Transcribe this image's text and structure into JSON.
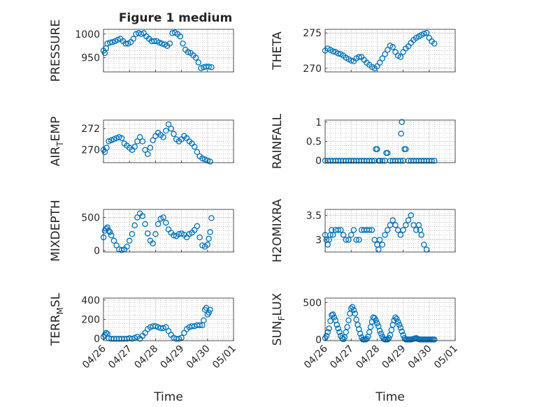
{
  "figure": {
    "title": "Figure 1 medium",
    "colors": {
      "marker": "#0072BD",
      "axis": "#262626",
      "grid": "#b3b3b3",
      "background": "#ffffff"
    }
  },
  "chart_data": [
    {
      "type": "scatter",
      "ylabel": "PRESSURE",
      "xlabel": "",
      "xlim": [
        "04/26",
        "05/01"
      ],
      "ylim": [
        920,
        1010
      ],
      "yticks": [
        950,
        1000
      ],
      "show_xticklabels": false,
      "x": [
        0,
        0.05,
        0.1,
        0.15,
        0.25,
        0.35,
        0.45,
        0.55,
        0.65,
        0.75,
        0.85,
        0.95,
        1.05,
        1.15,
        1.25,
        1.35,
        1.45,
        1.55,
        1.65,
        1.75,
        1.85,
        1.95,
        2.05,
        2.15,
        2.25,
        2.35,
        2.45,
        2.55,
        2.65,
        2.75,
        2.85,
        2.95,
        3.05,
        3.15,
        3.25,
        3.35,
        3.45,
        3.55,
        3.65,
        3.75,
        3.85,
        3.95,
        4.05,
        4.15
      ],
      "y": [
        965,
        960,
        970,
        980,
        982,
        983,
        985,
        988,
        990,
        985,
        980,
        980,
        983,
        990,
        1000,
        1002,
        1000,
        1002,
        995,
        990,
        985,
        985,
        985,
        982,
        980,
        978,
        975,
        980,
        1002,
        1003,
        1000,
        995,
        980,
        967,
        962,
        960,
        955,
        950,
        940,
        928,
        930,
        931,
        931,
        930
      ]
    },
    {
      "type": "scatter",
      "ylabel": "THETA",
      "xlabel": "",
      "xlim": [
        "04/26",
        "05/01"
      ],
      "ylim": [
        269.5,
        275.5
      ],
      "yticks": [
        270,
        275
      ],
      "show_xticklabels": false,
      "x": [
        0,
        0.1,
        0.2,
        0.3,
        0.4,
        0.5,
        0.6,
        0.7,
        0.8,
        0.9,
        1.0,
        1.1,
        1.2,
        1.3,
        1.4,
        1.5,
        1.6,
        1.7,
        1.8,
        1.9,
        2.0,
        2.1,
        2.2,
        2.3,
        2.4,
        2.5,
        2.6,
        2.7,
        2.8,
        2.9,
        3.0,
        3.1,
        3.2,
        3.3,
        3.4,
        3.5,
        3.6,
        3.7,
        3.8,
        3.9,
        4.0,
        4.1,
        4.2
      ],
      "y": [
        272.5,
        272.8,
        272.6,
        272.4,
        272.3,
        272.1,
        272.0,
        271.8,
        271.5,
        271.3,
        271.1,
        271.0,
        271.4,
        271.6,
        271.6,
        271.2,
        270.8,
        270.5,
        270.2,
        270.0,
        270.3,
        270.8,
        271.4,
        272.0,
        272.6,
        273.2,
        273.0,
        272.3,
        271.8,
        271.6,
        272.3,
        272.8,
        273.1,
        273.6,
        274.0,
        274.3,
        274.5,
        274.7,
        274.9,
        275.0,
        274.3,
        273.8,
        273.5
      ]
    },
    {
      "type": "scatter",
      "ylabel": "AIR_TEMP",
      "ylabel_main": "AIR",
      "ylabel_sub": "T",
      "ylabel_tail": "EMP",
      "xlabel": "",
      "xlim": [
        "04/26",
        "05/01"
      ],
      "ylim": [
        268.8,
        272.8
      ],
      "yticks": [
        270,
        272
      ],
      "show_xticklabels": false,
      "x": [
        0,
        0.05,
        0.12,
        0.2,
        0.3,
        0.4,
        0.5,
        0.6,
        0.7,
        0.8,
        0.9,
        1.0,
        1.1,
        1.2,
        1.3,
        1.4,
        1.5,
        1.6,
        1.7,
        1.8,
        1.9,
        2.0,
        2.1,
        2.2,
        2.3,
        2.4,
        2.5,
        2.6,
        2.7,
        2.8,
        2.9,
        3.0,
        3.1,
        3.2,
        3.3,
        3.4,
        3.5,
        3.6,
        3.7,
        3.8,
        3.9,
        4.0,
        4.1
      ],
      "y": [
        270,
        269.8,
        270.2,
        270.8,
        270.9,
        271,
        271.1,
        271.2,
        271.1,
        270.6,
        270.4,
        270.2,
        270.0,
        270.3,
        270.8,
        271.2,
        270.8,
        270.0,
        269.6,
        270.2,
        270.9,
        271.3,
        271.6,
        271.4,
        271.2,
        271.8,
        272.4,
        272.0,
        271.5,
        271.0,
        270.8,
        271.0,
        271.3,
        271.1,
        270.8,
        270.6,
        270.3,
        269.8,
        269.4,
        269.2,
        269.1,
        269.0,
        268.9
      ]
    },
    {
      "type": "scatter",
      "ylabel": "RAINFALL",
      "xlabel": "",
      "xlim": [
        "04/26",
        "05/01"
      ],
      "ylim": [
        -0.05,
        1.05
      ],
      "yticks": [
        0,
        0.5,
        1
      ],
      "ytick_labels": [
        "0",
        "0.5",
        "1"
      ],
      "show_xticklabels": false,
      "x": [
        0,
        0.1,
        0.2,
        0.3,
        0.4,
        0.5,
        0.6,
        0.7,
        0.8,
        0.9,
        1.0,
        1.1,
        1.2,
        1.3,
        1.4,
        1.5,
        1.6,
        1.7,
        1.8,
        1.9,
        1.95,
        2.0,
        2.05,
        2.1,
        2.2,
        2.3,
        2.35,
        2.4,
        2.5,
        2.6,
        2.7,
        2.8,
        2.9,
        2.92,
        2.95,
        3.0,
        3.05,
        3.1,
        3.2,
        3.3,
        3.4,
        3.5,
        3.6,
        3.7,
        3.8,
        3.9,
        4.0,
        4.1,
        4.2
      ],
      "y": [
        0,
        0,
        0,
        0,
        0,
        0,
        0,
        0,
        0,
        0,
        0,
        0,
        0,
        0,
        0,
        0,
        0,
        0,
        0,
        0,
        0.3,
        0.3,
        0,
        0,
        0,
        0,
        0.2,
        0.2,
        0,
        0,
        0,
        0,
        0,
        0.7,
        1.0,
        0,
        0.3,
        0.3,
        0,
        0,
        0,
        0,
        0,
        0,
        0,
        0,
        0,
        0,
        0
      ]
    },
    {
      "type": "scatter",
      "ylabel": "MIXDEPTH",
      "xlabel": "",
      "xlim": [
        "04/26",
        "05/01"
      ],
      "ylim": [
        -20,
        620
      ],
      "yticks": [
        0,
        500
      ],
      "show_xticklabels": false,
      "x": [
        0,
        0.05,
        0.1,
        0.15,
        0.2,
        0.25,
        0.3,
        0.4,
        0.5,
        0.6,
        0.7,
        0.8,
        0.9,
        1.0,
        1.1,
        1.2,
        1.3,
        1.4,
        1.5,
        1.6,
        1.7,
        1.8,
        1.9,
        2.0,
        2.1,
        2.2,
        2.3,
        2.4,
        2.5,
        2.6,
        2.7,
        2.8,
        2.9,
        3.0,
        3.1,
        3.2,
        3.3,
        3.4,
        3.5,
        3.6,
        3.7,
        3.8,
        3.9,
        4.0,
        4.05,
        4.1,
        4.15
      ],
      "y": [
        200,
        300,
        330,
        350,
        300,
        280,
        230,
        150,
        80,
        20,
        10,
        20,
        60,
        150,
        250,
        380,
        500,
        560,
        520,
        400,
        260,
        150,
        110,
        250,
        400,
        480,
        500,
        420,
        320,
        270,
        230,
        220,
        250,
        260,
        240,
        200,
        250,
        270,
        310,
        370,
        200,
        80,
        60,
        90,
        180,
        280,
        490
      ]
    },
    {
      "type": "scatter",
      "ylabel": "H2OMIXRA",
      "xlabel": "",
      "xlim": [
        "04/26",
        "05/01"
      ],
      "ylim": [
        2.75,
        3.62
      ],
      "yticks": [
        3,
        3.5
      ],
      "ytick_labels": [
        "3",
        "3.5"
      ],
      "show_xticklabels": false,
      "x": [
        0,
        0.05,
        0.1,
        0.15,
        0.2,
        0.25,
        0.3,
        0.4,
        0.5,
        0.6,
        0.7,
        0.8,
        0.9,
        1.0,
        1.1,
        1.2,
        1.3,
        1.4,
        1.5,
        1.6,
        1.7,
        1.8,
        1.9,
        2.0,
        2.05,
        2.1,
        2.2,
        2.3,
        2.4,
        2.5,
        2.6,
        2.7,
        2.8,
        2.9,
        3.0,
        3.1,
        3.2,
        3.3,
        3.4,
        3.5,
        3.6,
        3.65,
        3.7,
        3.8,
        3.9
      ],
      "y": [
        3.1,
        3.0,
        2.9,
        3.0,
        3.1,
        3.2,
        3.1,
        3.2,
        3.2,
        3.2,
        3.1,
        3.0,
        3.0,
        3.1,
        3.2,
        3.0,
        3.0,
        3.2,
        3.2,
        3.2,
        3.2,
        3.2,
        3.0,
        2.9,
        2.8,
        3.0,
        2.9,
        3.1,
        3.2,
        3.3,
        3.4,
        3.3,
        3.2,
        3.1,
        3.2,
        3.3,
        3.4,
        3.5,
        3.3,
        3.2,
        3.3,
        3.2,
        3.1,
        2.9,
        2.8
      ]
    },
    {
      "type": "scatter",
      "ylabel": "TERR_MSL",
      "ylabel_main": "TERR",
      "ylabel_sub": "M",
      "ylabel_tail": "SL",
      "xlabel": "Time",
      "xlim": [
        "04/26",
        "05/01"
      ],
      "ylim": [
        -20,
        420
      ],
      "yticks": [
        0,
        200,
        400
      ],
      "xticklabels": [
        "04/26",
        "04/27",
        "04/28",
        "04/29",
        "04/30",
        "05/01"
      ],
      "show_xticklabels": true,
      "x": [
        0,
        0.05,
        0.1,
        0.15,
        0.2,
        0.3,
        0.4,
        0.5,
        0.6,
        0.7,
        0.8,
        0.9,
        1.0,
        1.1,
        1.2,
        1.3,
        1.4,
        1.5,
        1.6,
        1.7,
        1.8,
        1.9,
        2.0,
        2.1,
        2.2,
        2.3,
        2.4,
        2.5,
        2.6,
        2.7,
        2.8,
        2.9,
        3.0,
        3.1,
        3.2,
        3.3,
        3.4,
        3.5,
        3.6,
        3.7,
        3.8,
        3.85,
        3.9,
        3.95,
        4.0,
        4.05,
        4.1
      ],
      "y": [
        20,
        40,
        60,
        50,
        5,
        0,
        0,
        0,
        0,
        0,
        0,
        0,
        5,
        0,
        10,
        20,
        0,
        30,
        60,
        100,
        120,
        130,
        130,
        120,
        110,
        110,
        120,
        80,
        40,
        10,
        0,
        0,
        10,
        60,
        100,
        120,
        130,
        130,
        140,
        140,
        140,
        190,
        300,
        320,
        250,
        270,
        300
      ]
    },
    {
      "type": "scatter",
      "ylabel": "SUN_FLUX",
      "ylabel_main": "SUN",
      "ylabel_sub": "F",
      "ylabel_tail": "LUX",
      "xlabel": "Time",
      "xlim": [
        "04/26",
        "05/01"
      ],
      "ylim": [
        -15,
        560
      ],
      "yticks": [
        0,
        500
      ],
      "xticklabels": [
        "04/26",
        "04/27",
        "04/28",
        "04/29",
        "04/30",
        "05/01"
      ],
      "show_xticklabels": true,
      "x": [
        0,
        0.05,
        0.1,
        0.15,
        0.2,
        0.25,
        0.3,
        0.35,
        0.4,
        0.45,
        0.5,
        0.55,
        0.6,
        0.65,
        0.7,
        0.75,
        0.8,
        0.85,
        0.9,
        0.95,
        1.0,
        1.05,
        1.1,
        1.15,
        1.2,
        1.25,
        1.3,
        1.35,
        1.4,
        1.45,
        1.5,
        1.55,
        1.6,
        1.65,
        1.7,
        1.75,
        1.8,
        1.85,
        1.9,
        1.95,
        2.0,
        2.05,
        2.1,
        2.15,
        2.2,
        2.25,
        2.3,
        2.35,
        2.4,
        2.45,
        2.5,
        2.55,
        2.6,
        2.65,
        2.7,
        2.75,
        2.8,
        2.85,
        2.9,
        2.95,
        3.0,
        3.05,
        3.1,
        3.15,
        3.2,
        3.25,
        3.3,
        3.35,
        3.4,
        3.45,
        3.5,
        3.55,
        3.6,
        3.65,
        3.7,
        3.75,
        3.8,
        3.85,
        3.9,
        3.95,
        4.0,
        4.05,
        4.1,
        4.15,
        4.2
      ],
      "y": [
        20,
        50,
        100,
        150,
        250,
        330,
        340,
        300,
        260,
        200,
        150,
        100,
        50,
        20,
        5,
        30,
        100,
        170,
        260,
        350,
        420,
        440,
        400,
        350,
        270,
        200,
        140,
        80,
        30,
        0,
        0,
        0,
        10,
        40,
        100,
        170,
        240,
        300,
        290,
        260,
        220,
        180,
        120,
        80,
        40,
        10,
        0,
        0,
        0,
        20,
        60,
        130,
        200,
        260,
        300,
        280,
        240,
        200,
        160,
        110,
        60,
        20,
        0,
        0,
        0,
        0,
        0,
        5,
        10,
        15,
        20,
        10,
        5,
        0,
        0,
        0,
        0,
        0,
        0,
        0,
        0,
        0,
        0,
        0,
        0
      ]
    }
  ]
}
